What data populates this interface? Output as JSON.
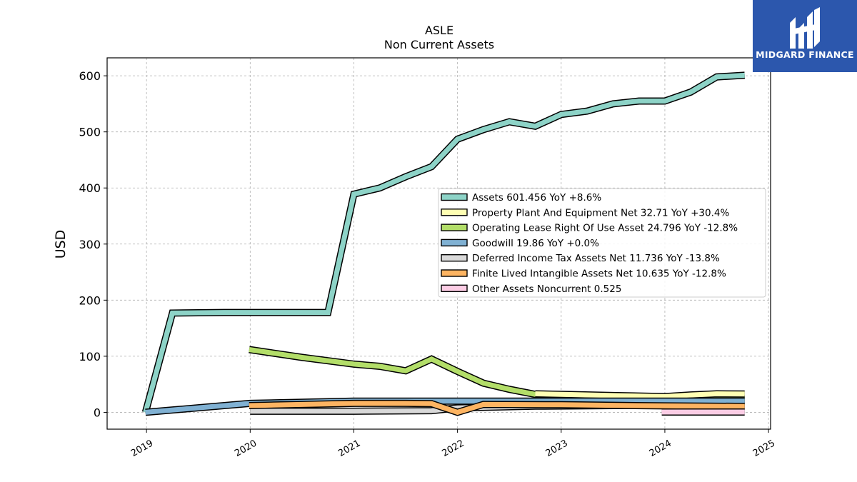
{
  "chart_data": {
    "type": "area",
    "title": "ASLE",
    "subtitle": "Non Current  Assets",
    "ylabel": "USD",
    "xlabel": "",
    "ylim": [
      -30,
      632
    ],
    "xlim": [
      2018.62,
      2025.02
    ],
    "yticks": [
      0,
      100,
      200,
      300,
      400,
      500,
      600
    ],
    "xticks": [
      2019,
      2020,
      2021,
      2022,
      2023,
      2024,
      2025
    ],
    "xtick_labels": [
      "2019",
      "2020",
      "2021",
      "2022",
      "2023",
      "2024",
      "2025"
    ],
    "grid": true,
    "legend_position": "center-right",
    "series": [
      {
        "name": "Assets",
        "legend": "Assets  601.456 YoY +8.6%",
        "color": "#8dd3c7",
        "x": [
          2018.99,
          2019.25,
          2019.75,
          2020.0,
          2020.5,
          2020.75,
          2021.0,
          2021.25,
          2021.5,
          2021.75,
          2022.0,
          2022.25,
          2022.5,
          2022.75,
          2023.0,
          2023.25,
          2023.5,
          2023.75,
          2024.0,
          2024.25,
          2024.5,
          2024.77
        ],
        "y": [
          0,
          177,
          178,
          178,
          178,
          178,
          389,
          400,
          420,
          438,
          487,
          504,
          518,
          510,
          531,
          537,
          550,
          555,
          555,
          571,
          598,
          601
        ]
      },
      {
        "name": "Property Plant And Equipment Net",
        "legend": "Property Plant And Equipment Net  32.71 YoY +30.4%",
        "color": "#ffffb3",
        "x": [
          2022.75,
          2023.0,
          2023.5,
          2024.0,
          2024.25,
          2024.5,
          2024.77
        ],
        "y": [
          33,
          32,
          30,
          28,
          31,
          33,
          32.7
        ]
      },
      {
        "name": "Operating Lease Right Of Use Asset",
        "legend": "Operating Lease Right Of Use Asset  24.796 YoY -12.8%",
        "color": "#b3de69",
        "x": [
          2019.99,
          2020.5,
          2021.0,
          2021.25,
          2021.5,
          2021.75,
          2022.0,
          2022.25,
          2022.5,
          2022.75,
          2023.0,
          2023.5,
          2024.0,
          2024.5,
          2024.77
        ],
        "y": [
          112,
          98,
          86,
          82,
          74,
          95,
          73,
          52,
          41,
          32,
          31,
          29,
          27,
          25.5,
          24.8
        ]
      },
      {
        "name": "Goodwill",
        "legend": "Goodwill  19.86 YoY +0.0%",
        "color": "#80b1d3",
        "x": [
          2018.99,
          2020.0,
          2021.0,
          2022.0,
          2023.0,
          2024.0,
          2024.77
        ],
        "y": [
          0,
          16,
          19.86,
          19.86,
          19.86,
          19.86,
          19.86
        ]
      },
      {
        "name": "Deferred Income Tax Assets Net",
        "legend": "Deferred Income Tax Assets Net  11.736 YoY -13.8%",
        "color": "#d9d9d9",
        "x": [
          2020.0,
          2021.0,
          2021.75,
          2022.0,
          2022.75,
          2023.5,
          2024.0,
          2024.77
        ],
        "y": [
          2,
          2,
          3,
          8,
          11,
          12,
          13,
          11.7
        ]
      },
      {
        "name": "Finite Lived Intangible Assets Net",
        "legend": "Finite Lived Intangible Assets Net  10.635 YoY -12.8%",
        "color": "#fdb462",
        "x": [
          2019.99,
          2020.5,
          2021.0,
          2021.5,
          2021.75,
          2022.0,
          2022.25,
          2023.0,
          2024.0,
          2024.77
        ],
        "y": [
          12,
          14,
          16,
          16,
          15.5,
          0,
          14,
          13.5,
          11.5,
          10.6
        ]
      },
      {
        "name": "Other Assets Noncurrent",
        "legend": "Other Assets Noncurrent  0.525",
        "color": "#fccde5",
        "x": [
          2023.97,
          2024.77
        ],
        "y": [
          0.525,
          0.525
        ]
      }
    ]
  },
  "logo": {
    "text": "MIDGARD FINANCE",
    "color": "#2c57ad"
  }
}
